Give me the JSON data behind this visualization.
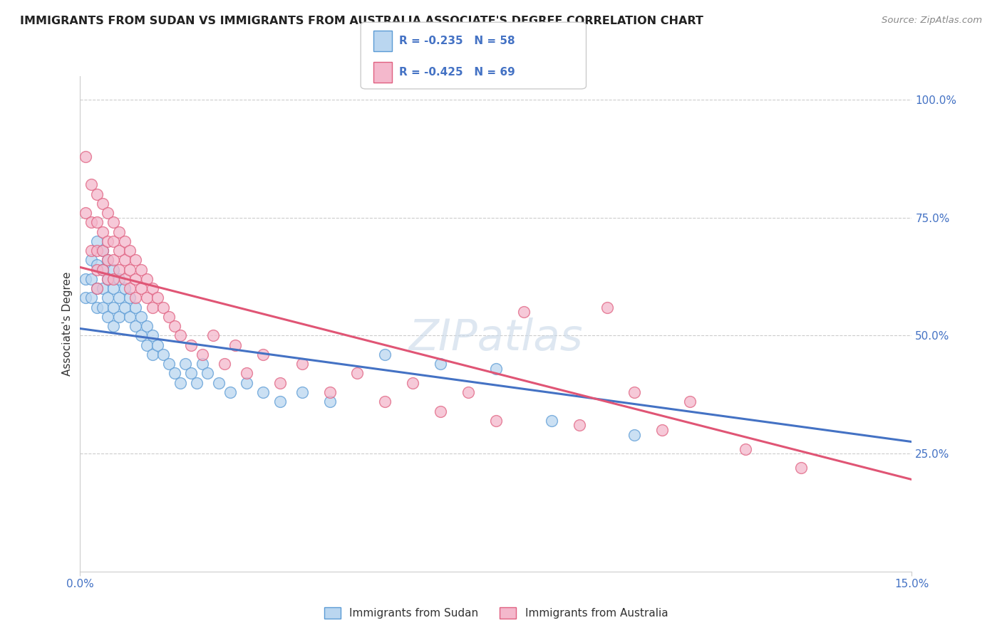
{
  "title": "IMMIGRANTS FROM SUDAN VS IMMIGRANTS FROM AUSTRALIA ASSOCIATE'S DEGREE CORRELATION CHART",
  "source": "Source: ZipAtlas.com",
  "ylabel": "Associate's Degree",
  "xlim": [
    0.0,
    0.15
  ],
  "ylim": [
    0.0,
    1.05
  ],
  "x_tick_vals": [
    0.0,
    0.15
  ],
  "x_tick_labels": [
    "0.0%",
    "15.0%"
  ],
  "y_tick_vals": [
    0.25,
    0.5,
    0.75,
    1.0
  ],
  "y_tick_labels": [
    "25.0%",
    "50.0%",
    "75.0%",
    "100.0%"
  ],
  "sudan_fill": "#bad6f0",
  "sudan_edge": "#5b9bd5",
  "australia_fill": "#f4b8cc",
  "australia_edge": "#e06080",
  "sudan_line_color": "#4472c4",
  "australia_line_color": "#e05575",
  "R_sudan": -0.235,
  "N_sudan": 58,
  "R_australia": -0.425,
  "N_australia": 69,
  "sudan_line": [
    0.0,
    0.515,
    0.15,
    0.275
  ],
  "australia_line": [
    0.0,
    0.645,
    0.15,
    0.195
  ],
  "sudan_points": [
    [
      0.001,
      0.62
    ],
    [
      0.001,
      0.58
    ],
    [
      0.002,
      0.66
    ],
    [
      0.002,
      0.62
    ],
    [
      0.002,
      0.58
    ],
    [
      0.003,
      0.7
    ],
    [
      0.003,
      0.65
    ],
    [
      0.003,
      0.6
    ],
    [
      0.003,
      0.56
    ],
    [
      0.004,
      0.68
    ],
    [
      0.004,
      0.64
    ],
    [
      0.004,
      0.6
    ],
    [
      0.004,
      0.56
    ],
    [
      0.005,
      0.66
    ],
    [
      0.005,
      0.62
    ],
    [
      0.005,
      0.58
    ],
    [
      0.005,
      0.54
    ],
    [
      0.006,
      0.64
    ],
    [
      0.006,
      0.6
    ],
    [
      0.006,
      0.56
    ],
    [
      0.006,
      0.52
    ],
    [
      0.007,
      0.62
    ],
    [
      0.007,
      0.58
    ],
    [
      0.007,
      0.54
    ],
    [
      0.008,
      0.6
    ],
    [
      0.008,
      0.56
    ],
    [
      0.009,
      0.58
    ],
    [
      0.009,
      0.54
    ],
    [
      0.01,
      0.56
    ],
    [
      0.01,
      0.52
    ],
    [
      0.011,
      0.54
    ],
    [
      0.011,
      0.5
    ],
    [
      0.012,
      0.52
    ],
    [
      0.012,
      0.48
    ],
    [
      0.013,
      0.5
    ],
    [
      0.013,
      0.46
    ],
    [
      0.014,
      0.48
    ],
    [
      0.015,
      0.46
    ],
    [
      0.016,
      0.44
    ],
    [
      0.017,
      0.42
    ],
    [
      0.018,
      0.4
    ],
    [
      0.019,
      0.44
    ],
    [
      0.02,
      0.42
    ],
    [
      0.021,
      0.4
    ],
    [
      0.022,
      0.44
    ],
    [
      0.023,
      0.42
    ],
    [
      0.025,
      0.4
    ],
    [
      0.027,
      0.38
    ],
    [
      0.03,
      0.4
    ],
    [
      0.033,
      0.38
    ],
    [
      0.036,
      0.36
    ],
    [
      0.04,
      0.38
    ],
    [
      0.045,
      0.36
    ],
    [
      0.055,
      0.46
    ],
    [
      0.065,
      0.44
    ],
    [
      0.075,
      0.43
    ],
    [
      0.085,
      0.32
    ],
    [
      0.1,
      0.29
    ]
  ],
  "australia_points": [
    [
      0.001,
      0.88
    ],
    [
      0.001,
      0.76
    ],
    [
      0.002,
      0.82
    ],
    [
      0.002,
      0.74
    ],
    [
      0.002,
      0.68
    ],
    [
      0.003,
      0.8
    ],
    [
      0.003,
      0.74
    ],
    [
      0.003,
      0.68
    ],
    [
      0.003,
      0.64
    ],
    [
      0.003,
      0.6
    ],
    [
      0.004,
      0.78
    ],
    [
      0.004,
      0.72
    ],
    [
      0.004,
      0.68
    ],
    [
      0.004,
      0.64
    ],
    [
      0.005,
      0.76
    ],
    [
      0.005,
      0.7
    ],
    [
      0.005,
      0.66
    ],
    [
      0.005,
      0.62
    ],
    [
      0.006,
      0.74
    ],
    [
      0.006,
      0.7
    ],
    [
      0.006,
      0.66
    ],
    [
      0.006,
      0.62
    ],
    [
      0.007,
      0.72
    ],
    [
      0.007,
      0.68
    ],
    [
      0.007,
      0.64
    ],
    [
      0.008,
      0.7
    ],
    [
      0.008,
      0.66
    ],
    [
      0.008,
      0.62
    ],
    [
      0.009,
      0.68
    ],
    [
      0.009,
      0.64
    ],
    [
      0.009,
      0.6
    ],
    [
      0.01,
      0.66
    ],
    [
      0.01,
      0.62
    ],
    [
      0.01,
      0.58
    ],
    [
      0.011,
      0.64
    ],
    [
      0.011,
      0.6
    ],
    [
      0.012,
      0.62
    ],
    [
      0.012,
      0.58
    ],
    [
      0.013,
      0.6
    ],
    [
      0.013,
      0.56
    ],
    [
      0.014,
      0.58
    ],
    [
      0.015,
      0.56
    ],
    [
      0.016,
      0.54
    ],
    [
      0.017,
      0.52
    ],
    [
      0.018,
      0.5
    ],
    [
      0.02,
      0.48
    ],
    [
      0.022,
      0.46
    ],
    [
      0.024,
      0.5
    ],
    [
      0.026,
      0.44
    ],
    [
      0.028,
      0.48
    ],
    [
      0.03,
      0.42
    ],
    [
      0.033,
      0.46
    ],
    [
      0.036,
      0.4
    ],
    [
      0.04,
      0.44
    ],
    [
      0.045,
      0.38
    ],
    [
      0.05,
      0.42
    ],
    [
      0.055,
      0.36
    ],
    [
      0.06,
      0.4
    ],
    [
      0.065,
      0.34
    ],
    [
      0.07,
      0.38
    ],
    [
      0.075,
      0.32
    ],
    [
      0.08,
      0.55
    ],
    [
      0.09,
      0.31
    ],
    [
      0.095,
      0.56
    ],
    [
      0.1,
      0.38
    ],
    [
      0.105,
      0.3
    ],
    [
      0.11,
      0.36
    ],
    [
      0.12,
      0.26
    ],
    [
      0.13,
      0.22
    ]
  ]
}
